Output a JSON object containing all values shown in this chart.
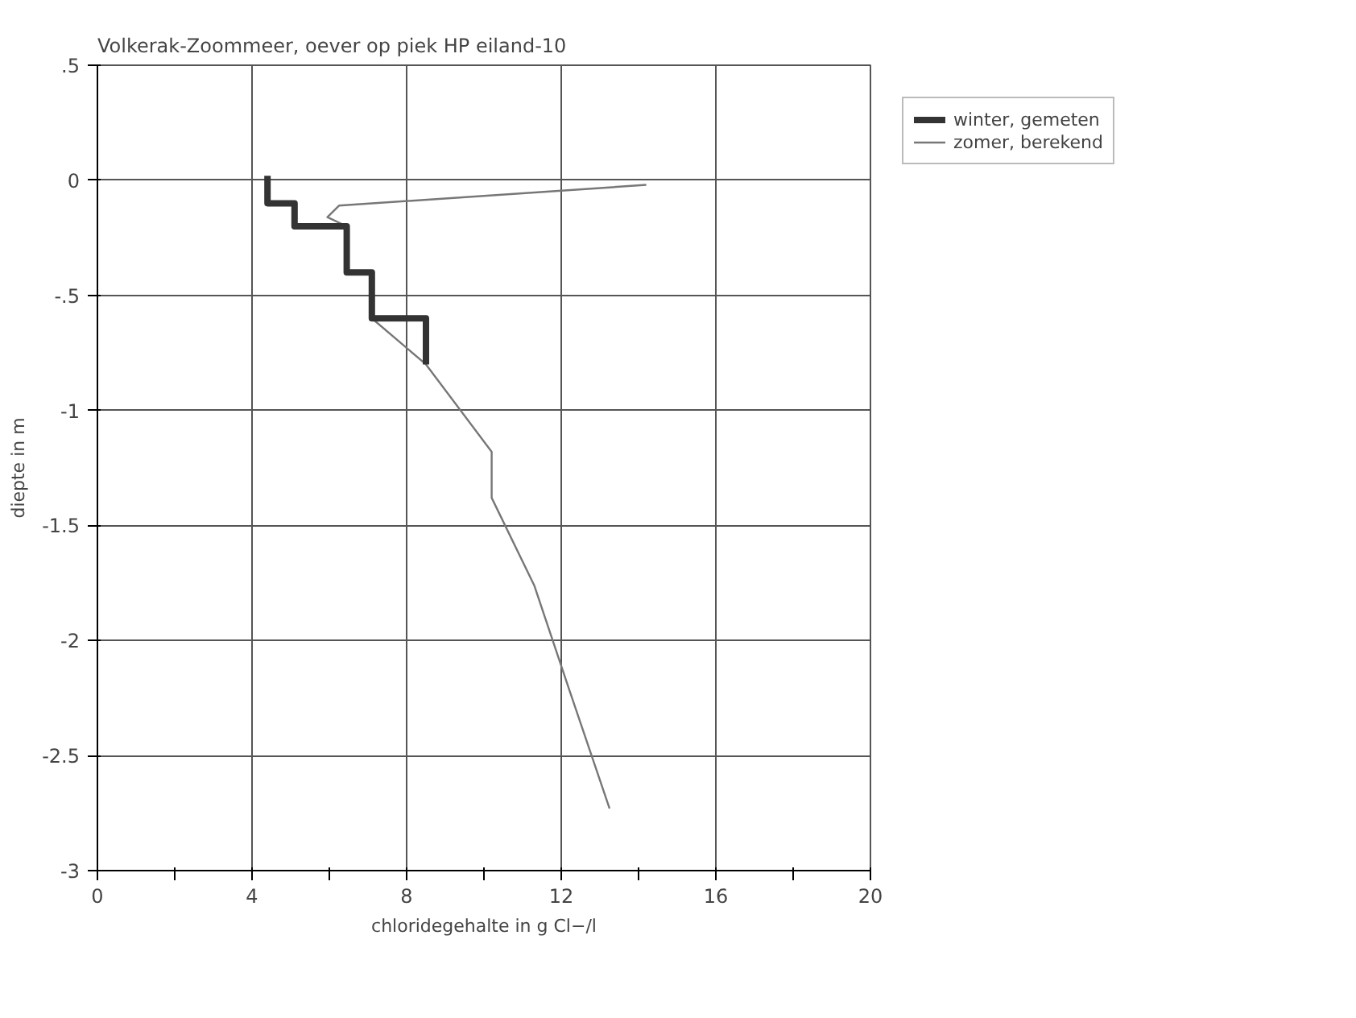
{
  "chart_data": {
    "type": "line",
    "title": "Volkerak-Zoommeer, oever op piek HP eiland-10",
    "xlabel": "chloridegehalte in g Cl−/l",
    "ylabel": "diepte in m",
    "series": [
      {
        "name": "zomer, berekend",
        "color": "#777777",
        "x": [
          14.2,
          6.25,
          5.95,
          6.45,
          6.45,
          7.1,
          7.1,
          8.5,
          10.2,
          10.2,
          11.3,
          12.2,
          13.25
        ],
        "values": [
          -0.02,
          -0.11,
          -0.16,
          -0.2,
          -0.4,
          -0.4,
          -0.6,
          -0.8,
          -1.18,
          -1.38,
          -1.76,
          -2.21,
          -2.73
        ]
      },
      {
        "name": "winter, gemeten",
        "color": "#333333",
        "x": [
          4.4,
          4.4,
          5.1,
          5.1,
          6.45,
          6.45,
          7.1,
          7.1,
          8.5,
          8.5
        ],
        "values": [
          0.02,
          -0.1,
          -0.1,
          -0.2,
          -0.2,
          -0.4,
          -0.4,
          -0.6,
          -0.6,
          -0.8
        ]
      }
    ],
    "xlim": [
      0,
      20
    ],
    "ylim": [
      -3,
      0.5
    ],
    "xticks": [
      0,
      {
        "value": 2,
        "label": null
      },
      4,
      {
        "value": 6,
        "label": null
      },
      8,
      {
        "value": 10,
        "label": null
      },
      12,
      {
        "value": 14,
        "label": null
      },
      16,
      {
        "value": 18,
        "label": null
      },
      20
    ],
    "yticks": [
      {
        "value": -3,
        "label": "-3"
      },
      {
        "value": -2.5,
        "label": "-2.5"
      },
      {
        "value": -2,
        "label": "-2"
      },
      {
        "value": -1.5,
        "label": "-1.5"
      },
      {
        "value": -1,
        "label": "-1"
      },
      {
        "value": -0.5,
        "label": "-.5"
      },
      {
        "value": 0,
        "label": "0"
      },
      {
        "value": 0.5,
        "label": ".5"
      }
    ],
    "grid": true,
    "legend": "top right",
    "marker": "none",
    "line_style": "solid"
  }
}
